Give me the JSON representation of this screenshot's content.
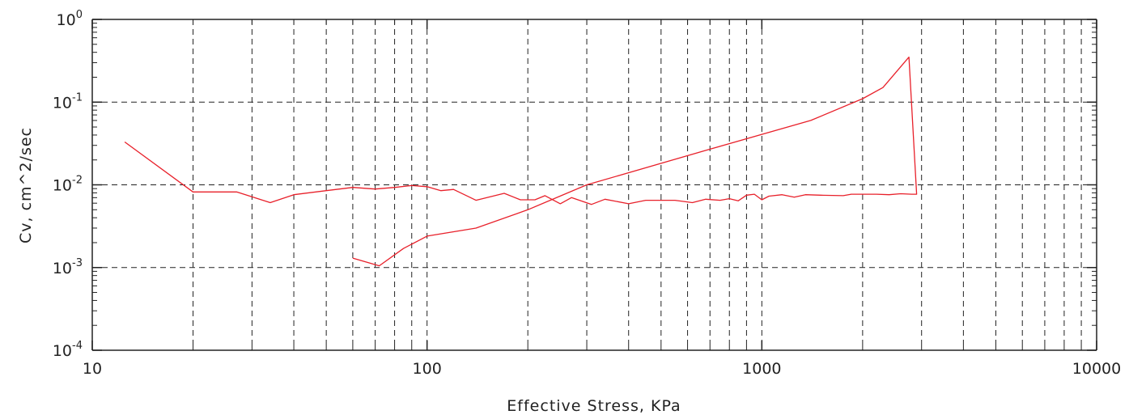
{
  "chart_data": {
    "type": "line",
    "title": "",
    "xlabel": "Effective Stress, KPa",
    "ylabel": "Cv, cm^2/sec",
    "x_scale": "log",
    "y_scale": "log",
    "xlim": [
      10,
      10000
    ],
    "ylim": [
      0.0001,
      1
    ],
    "grid": true,
    "x_ticks": [
      {
        "value": 10,
        "label": "10"
      },
      {
        "value": 100,
        "label": "100"
      },
      {
        "value": 1000,
        "label": "1000"
      },
      {
        "value": 10000,
        "label": "10000"
      }
    ],
    "y_ticks": [
      {
        "value": 1,
        "base": "10",
        "exp": "0"
      },
      {
        "value": 0.1,
        "base": "10",
        "exp": "-1"
      },
      {
        "value": 0.01,
        "base": "10",
        "exp": "-2"
      },
      {
        "value": 0.001,
        "base": "10",
        "exp": "-3"
      },
      {
        "value": 0.0001,
        "base": "10",
        "exp": "-4"
      }
    ],
    "series_color": "#e8202a",
    "series": [
      {
        "points": [
          [
            12.5,
            0.033
          ],
          [
            20,
            0.0082
          ],
          [
            27,
            0.0082
          ],
          [
            34,
            0.0061
          ],
          [
            40,
            0.0076
          ],
          [
            50,
            0.0085
          ],
          [
            60,
            0.0093
          ],
          [
            70,
            0.0089
          ],
          [
            80,
            0.0093
          ],
          [
            90,
            0.0098
          ],
          [
            100,
            0.0095
          ],
          [
            110,
            0.0085
          ],
          [
            120,
            0.0088
          ],
          [
            140,
            0.0065
          ],
          [
            170,
            0.0079
          ],
          [
            190,
            0.0066
          ],
          [
            210,
            0.0066
          ],
          [
            225,
            0.0074
          ],
          [
            250,
            0.0059
          ],
          [
            270,
            0.007
          ],
          [
            310,
            0.0058
          ],
          [
            340,
            0.0067
          ],
          [
            400,
            0.0059
          ],
          [
            450,
            0.0065
          ],
          [
            550,
            0.0065
          ],
          [
            620,
            0.0061
          ],
          [
            680,
            0.0067
          ],
          [
            750,
            0.0065
          ],
          [
            800,
            0.0068
          ],
          [
            850,
            0.0064
          ],
          [
            900,
            0.0075
          ],
          [
            950,
            0.0077
          ],
          [
            1000,
            0.0066
          ],
          [
            1050,
            0.0073
          ],
          [
            1150,
            0.0076
          ],
          [
            1250,
            0.0071
          ],
          [
            1350,
            0.0076
          ],
          [
            1500,
            0.0075
          ],
          [
            1750,
            0.0074
          ],
          [
            1850,
            0.0077
          ],
          [
            2000,
            0.0077
          ],
          [
            2200,
            0.0077
          ],
          [
            2400,
            0.0076
          ],
          [
            2600,
            0.0078
          ],
          [
            2800,
            0.0077
          ],
          [
            2900,
            0.0077
          ],
          [
            2750,
            0.35
          ],
          [
            2300,
            0.15
          ],
          [
            2000,
            0.11
          ],
          [
            1400,
            0.06
          ],
          [
            700,
            0.027
          ],
          [
            300,
            0.01
          ],
          [
            200,
            0.005
          ],
          [
            140,
            0.003
          ],
          [
            100,
            0.0024
          ],
          [
            85,
            0.0017
          ],
          [
            72,
            0.00105
          ],
          [
            60,
            0.0013
          ]
        ]
      }
    ]
  }
}
